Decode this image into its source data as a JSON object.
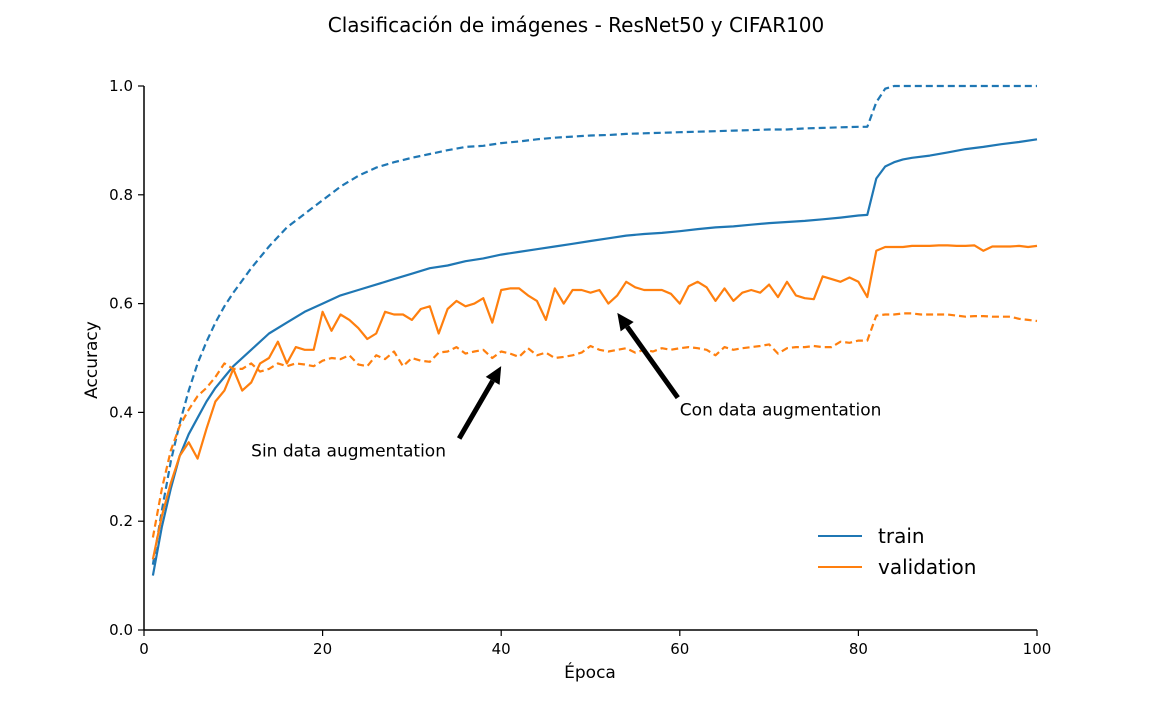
{
  "chart_data": {
    "type": "line",
    "title": "Clasificación de imágenes - ResNet50 y CIFAR100",
    "xlabel": "Época",
    "ylabel": "Accuracy",
    "xlim": [
      0,
      100
    ],
    "ylim": [
      0.0,
      1.0
    ],
    "xticks": [
      "0",
      "20",
      "40",
      "60",
      "80",
      "100"
    ],
    "yticks": [
      "0.0",
      "0.2",
      "0.4",
      "0.6",
      "0.8",
      "1.0"
    ],
    "grid": false,
    "legend_position": "lower-right",
    "legend": [
      {
        "label": "train",
        "color": "#1f77b4"
      },
      {
        "label": "validation",
        "color": "#ff7f0e"
      }
    ],
    "annotations": [
      {
        "text": "Sin data augmentation",
        "xy": [
          40,
          0.485
        ],
        "xytext": [
          12,
          0.33
        ]
      },
      {
        "text": "Con data augmentation",
        "xy": [
          53,
          0.583
        ],
        "xytext": [
          60,
          0.405
        ]
      }
    ],
    "series": [
      {
        "name": "train",
        "color": "#1f77b4",
        "dash": false,
        "x": [
          1,
          2,
          3,
          4,
          5,
          6,
          7,
          8,
          9,
          10,
          12,
          14,
          16,
          18,
          20,
          22,
          24,
          26,
          28,
          30,
          32,
          34,
          36,
          38,
          40,
          42,
          44,
          46,
          48,
          50,
          52,
          54,
          56,
          58,
          60,
          62,
          64,
          66,
          68,
          70,
          72,
          74,
          76,
          78,
          80,
          81,
          82,
          83,
          84,
          85,
          86,
          88,
          90,
          92,
          94,
          96,
          98,
          100
        ],
        "y": [
          0.1,
          0.19,
          0.26,
          0.32,
          0.36,
          0.39,
          0.42,
          0.445,
          0.465,
          0.485,
          0.515,
          0.545,
          0.565,
          0.585,
          0.6,
          0.615,
          0.625,
          0.635,
          0.645,
          0.655,
          0.665,
          0.67,
          0.678,
          0.683,
          0.69,
          0.695,
          0.7,
          0.705,
          0.71,
          0.715,
          0.72,
          0.725,
          0.728,
          0.73,
          0.733,
          0.737,
          0.74,
          0.742,
          0.745,
          0.748,
          0.75,
          0.752,
          0.755,
          0.758,
          0.762,
          0.763,
          0.83,
          0.852,
          0.86,
          0.865,
          0.868,
          0.872,
          0.878,
          0.884,
          0.888,
          0.893,
          0.897,
          0.902
        ]
      },
      {
        "name": "train (sin data augmentation)",
        "color": "#1f77b4",
        "dash": true,
        "x": [
          1,
          2,
          3,
          4,
          5,
          6,
          7,
          8,
          9,
          10,
          12,
          14,
          16,
          18,
          20,
          22,
          24,
          26,
          28,
          30,
          32,
          34,
          36,
          38,
          40,
          42,
          44,
          46,
          48,
          50,
          52,
          54,
          56,
          58,
          60,
          62,
          64,
          66,
          68,
          70,
          72,
          74,
          76,
          78,
          80,
          81,
          82,
          83,
          84,
          85,
          86,
          88,
          90,
          92,
          94,
          96,
          98,
          100
        ],
        "y": [
          0.12,
          0.22,
          0.31,
          0.38,
          0.44,
          0.49,
          0.53,
          0.565,
          0.595,
          0.62,
          0.665,
          0.705,
          0.74,
          0.765,
          0.79,
          0.815,
          0.835,
          0.85,
          0.86,
          0.868,
          0.875,
          0.882,
          0.888,
          0.89,
          0.895,
          0.898,
          0.902,
          0.905,
          0.907,
          0.909,
          0.91,
          0.912,
          0.913,
          0.914,
          0.915,
          0.916,
          0.917,
          0.918,
          0.919,
          0.92,
          0.92,
          0.922,
          0.923,
          0.924,
          0.925,
          0.925,
          0.97,
          0.995,
          1.0,
          1.0,
          1.0,
          1.0,
          1.0,
          1.0,
          1.0,
          1.0,
          1.0,
          1.0
        ]
      },
      {
        "name": "validation",
        "color": "#ff7f0e",
        "dash": false,
        "x": [
          1,
          2,
          3,
          4,
          5,
          6,
          7,
          8,
          9,
          10,
          11,
          12,
          13,
          14,
          15,
          16,
          17,
          18,
          19,
          20,
          21,
          22,
          23,
          24,
          25,
          26,
          27,
          28,
          29,
          30,
          31,
          32,
          33,
          34,
          35,
          36,
          37,
          38,
          39,
          40,
          41,
          42,
          43,
          44,
          45,
          46,
          47,
          48,
          49,
          50,
          51,
          52,
          53,
          54,
          55,
          56,
          57,
          58,
          59,
          60,
          61,
          62,
          63,
          64,
          65,
          66,
          67,
          68,
          69,
          70,
          71,
          72,
          73,
          74,
          75,
          76,
          77,
          78,
          79,
          80,
          81,
          82,
          83,
          84,
          85,
          86,
          87,
          88,
          89,
          90,
          91,
          92,
          93,
          94,
          95,
          96,
          97,
          98,
          99,
          100
        ],
        "y": [
          0.13,
          0.21,
          0.27,
          0.32,
          0.345,
          0.315,
          0.37,
          0.42,
          0.44,
          0.48,
          0.44,
          0.455,
          0.49,
          0.5,
          0.53,
          0.49,
          0.52,
          0.515,
          0.515,
          0.585,
          0.55,
          0.58,
          0.57,
          0.555,
          0.535,
          0.545,
          0.585,
          0.58,
          0.58,
          0.57,
          0.59,
          0.595,
          0.545,
          0.59,
          0.605,
          0.595,
          0.6,
          0.61,
          0.565,
          0.625,
          0.628,
          0.628,
          0.615,
          0.605,
          0.57,
          0.628,
          0.6,
          0.625,
          0.625,
          0.62,
          0.625,
          0.6,
          0.615,
          0.64,
          0.63,
          0.625,
          0.625,
          0.625,
          0.618,
          0.6,
          0.632,
          0.64,
          0.63,
          0.605,
          0.628,
          0.605,
          0.62,
          0.625,
          0.62,
          0.635,
          0.612,
          0.64,
          0.615,
          0.61,
          0.608,
          0.65,
          0.645,
          0.64,
          0.648,
          0.64,
          0.612,
          0.697,
          0.704,
          0.704,
          0.704,
          0.706,
          0.706,
          0.706,
          0.707,
          0.707,
          0.706,
          0.706,
          0.707,
          0.697,
          0.705,
          0.705,
          0.705,
          0.706,
          0.704,
          0.706
        ]
      },
      {
        "name": "validation (sin data augmentation)",
        "color": "#ff7f0e",
        "dash": true,
        "x": [
          1,
          2,
          3,
          4,
          5,
          6,
          7,
          8,
          9,
          10,
          11,
          12,
          13,
          14,
          15,
          16,
          17,
          18,
          19,
          20,
          21,
          22,
          23,
          24,
          25,
          26,
          27,
          28,
          29,
          30,
          31,
          32,
          33,
          34,
          35,
          36,
          37,
          38,
          39,
          40,
          41,
          42,
          43,
          44,
          45,
          46,
          47,
          48,
          49,
          50,
          51,
          52,
          53,
          54,
          55,
          56,
          57,
          58,
          59,
          60,
          61,
          62,
          63,
          64,
          65,
          66,
          67,
          68,
          69,
          70,
          71,
          72,
          73,
          74,
          75,
          76,
          77,
          78,
          79,
          80,
          81,
          82,
          83,
          84,
          85,
          86,
          87,
          88,
          89,
          90,
          91,
          92,
          93,
          94,
          95,
          96,
          97,
          98,
          99,
          100
        ],
        "y": [
          0.17,
          0.26,
          0.33,
          0.375,
          0.405,
          0.43,
          0.445,
          0.465,
          0.49,
          0.48,
          0.48,
          0.49,
          0.475,
          0.48,
          0.49,
          0.485,
          0.49,
          0.488,
          0.485,
          0.495,
          0.5,
          0.498,
          0.505,
          0.488,
          0.485,
          0.505,
          0.498,
          0.512,
          0.485,
          0.5,
          0.495,
          0.493,
          0.51,
          0.512,
          0.52,
          0.508,
          0.512,
          0.515,
          0.5,
          0.512,
          0.508,
          0.502,
          0.518,
          0.505,
          0.51,
          0.5,
          0.502,
          0.505,
          0.51,
          0.522,
          0.515,
          0.512,
          0.515,
          0.518,
          0.51,
          0.515,
          0.512,
          0.518,
          0.515,
          0.518,
          0.52,
          0.518,
          0.515,
          0.505,
          0.52,
          0.515,
          0.518,
          0.52,
          0.522,
          0.525,
          0.508,
          0.518,
          0.52,
          0.52,
          0.522,
          0.52,
          0.52,
          0.53,
          0.528,
          0.532,
          0.532,
          0.578,
          0.58,
          0.58,
          0.582,
          0.582,
          0.58,
          0.58,
          0.58,
          0.58,
          0.578,
          0.576,
          0.577,
          0.577,
          0.576,
          0.576,
          0.576,
          0.572,
          0.57,
          0.568
        ]
      }
    ]
  }
}
